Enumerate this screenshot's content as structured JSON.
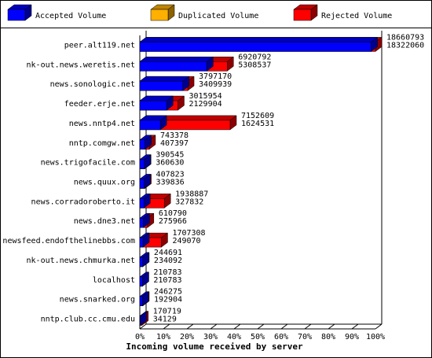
{
  "chart_data": {
    "type": "bar",
    "xlabel": "Incoming volume received by server",
    "legend": [
      {
        "name": "Accepted Volume",
        "color": "#0000ff"
      },
      {
        "name": "Duplicated Volume",
        "color": "#ffb000"
      },
      {
        "name": "Rejected Volume",
        "color": "#ff0000"
      }
    ],
    "categories": [
      "peer.alt119.net",
      "nk-out.news.weretis.net",
      "news.sonologic.net",
      "feeder.erje.net",
      "news.nntp4.net",
      "nntp.comgw.net",
      "news.trigofacile.com",
      "news.quux.org",
      "news.corradoroberto.it",
      "news.dne3.net",
      "newsfeed.endofthelinebbs.com",
      "nk-out.news.chmurka.net",
      "localhost",
      "news.snarked.org",
      "nntp.club.cc.cmu.edu"
    ],
    "totals": [
      18660793,
      6920792,
      3797170,
      3015954,
      7152609,
      743378,
      390545,
      407823,
      1938887,
      610790,
      1707308,
      244691,
      210783,
      246275,
      170719
    ],
    "accepted": [
      18322060,
      5308537,
      3409939,
      2129904,
      1624531,
      407397,
      360630,
      339836,
      327832,
      275966,
      249070,
      234092,
      210783,
      192904,
      34129
    ],
    "xlim": [
      0,
      100
    ],
    "xticks": [
      {
        "value": 0,
        "label": "0%"
      },
      {
        "value": 10,
        "label": "10%"
      },
      {
        "value": 20,
        "label": "20%"
      },
      {
        "value": 30,
        "label": "30%"
      },
      {
        "value": 40,
        "label": "40%"
      },
      {
        "value": 50,
        "label": "50%"
      },
      {
        "value": 60,
        "label": "60%"
      },
      {
        "value": 70,
        "label": "70%"
      },
      {
        "value": 80,
        "label": "80%"
      },
      {
        "value": 90,
        "label": "90%"
      },
      {
        "value": 100,
        "label": "100%"
      }
    ]
  }
}
